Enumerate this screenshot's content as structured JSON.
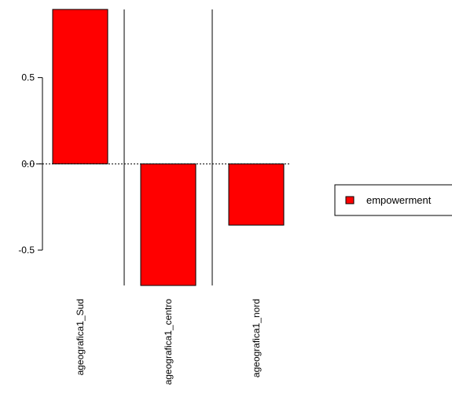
{
  "chart_data": {
    "type": "bar",
    "categories": [
      "ageografica1_Sud",
      "ageografica1_centro",
      "ageografica1_nord"
    ],
    "series": [
      {
        "name": "empowerment",
        "values": [
          0.895,
          -0.705,
          -0.355
        ]
      }
    ],
    "title": "",
    "xlabel": "",
    "ylabel": "",
    "ylim": [
      -0.705,
      0.895
    ],
    "yticks": [
      -0.5,
      0.0,
      0.5
    ],
    "ytick_labels": [
      "-0.5",
      "0.0",
      "0.5"
    ],
    "zero_line": "dotted",
    "grid": false,
    "legend": {
      "position": "right",
      "entries": [
        "empowerment"
      ]
    },
    "colors": {
      "bar_fill": "#ff0000",
      "bar_stroke": "#000000",
      "axis": "#000000",
      "background": "#ffffff"
    }
  }
}
